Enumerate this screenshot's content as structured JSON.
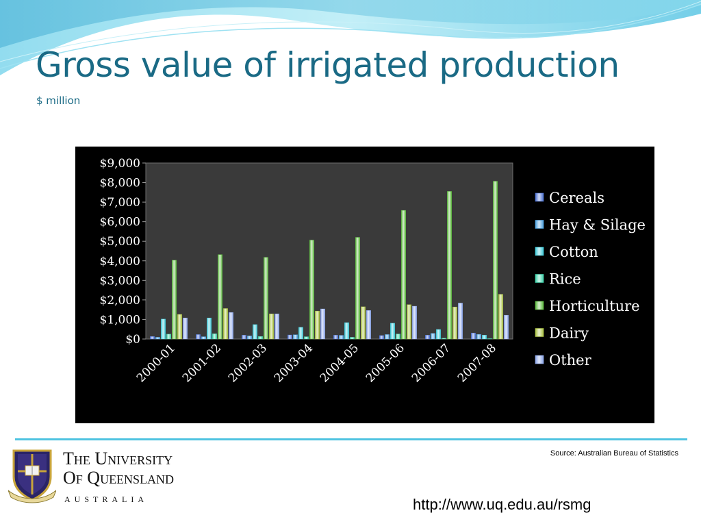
{
  "slide": {
    "title": "Gross value of irrigated production",
    "subtitle": "$ million",
    "source": "Source: Australian Bureau of Statistics",
    "url": "http://www.uq.edu.au/rsmg",
    "university_line1": "The University",
    "university_line2": "Of Queensland",
    "university_country": "AUSTRALIA",
    "accent_color": "#1a6a85"
  },
  "chart_data": {
    "type": "bar",
    "categories": [
      "2000-01",
      "2001-02",
      "2002-03",
      "2003-04",
      "2004-05",
      "2005-06",
      "2006-07",
      "2007-08"
    ],
    "y_ticks": [
      "$0",
      "$1,000",
      "$2,000",
      "$3,000",
      "$4,000",
      "$5,000",
      "$6,000",
      "$7,000",
      "$8,000",
      "$9,000"
    ],
    "ylim": [
      0,
      9000
    ],
    "legend_position": "right",
    "grid": false,
    "series": [
      {
        "name": "Cereals",
        "color": "#4a6fd0",
        "values": [
          130,
          230,
          200,
          210,
          200,
          180,
          200,
          310
        ]
      },
      {
        "name": "Hay & Silage",
        "color": "#4aa0e0",
        "values": [
          90,
          120,
          160,
          220,
          190,
          230,
          290,
          240
        ]
      },
      {
        "name": "Cotton",
        "color": "#3cc8d8",
        "values": [
          1020,
          1080,
          740,
          600,
          840,
          810,
          490,
          200
        ]
      },
      {
        "name": "Rice",
        "color": "#3cd0a8",
        "values": [
          250,
          270,
          130,
          120,
          90,
          260,
          40,
          20
        ]
      },
      {
        "name": "Horticulture",
        "color": "#5ab83c",
        "values": [
          4030,
          4320,
          4180,
          5060,
          5200,
          6580,
          7550,
          8070
        ]
      },
      {
        "name": "Dairy",
        "color": "#a8c040",
        "values": [
          1260,
          1560,
          1290,
          1430,
          1650,
          1760,
          1640,
          2290
        ]
      },
      {
        "name": "Other",
        "color": "#8aa4e8",
        "values": [
          1080,
          1360,
          1290,
          1540,
          1460,
          1680,
          1840,
          1220
        ]
      }
    ]
  }
}
